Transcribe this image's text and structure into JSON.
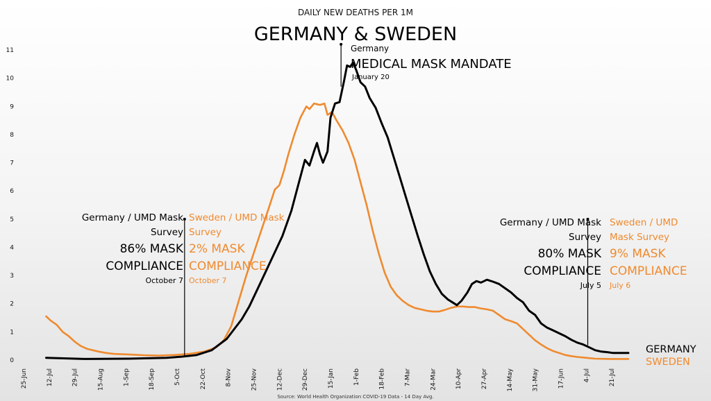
{
  "chart_data": {
    "type": "line",
    "subtitle": "DAILY NEW DEATHS PER 1M",
    "title": "GERMANY & SWEDEN",
    "source": "Source: World Health Organization COVID-19 Data - 14 Day Avg.",
    "ylim": [
      0,
      11
    ],
    "yticks": [
      0,
      1,
      2,
      3,
      4,
      5,
      6,
      7,
      8,
      9,
      10,
      11
    ],
    "x_domain": [
      0,
      408
    ],
    "xticks": [
      {
        "label": "25-Jun",
        "day": 0
      },
      {
        "label": "12-Jul",
        "day": 17
      },
      {
        "label": "29-Jul",
        "day": 34
      },
      {
        "label": "15-Aug",
        "day": 51
      },
      {
        "label": "1-Sep",
        "day": 68
      },
      {
        "label": "18-Sep",
        "day": 85
      },
      {
        "label": "5-Oct",
        "day": 102
      },
      {
        "label": "22-Oct",
        "day": 119
      },
      {
        "label": "8-Nov",
        "day": 136
      },
      {
        "label": "25-Nov",
        "day": 153
      },
      {
        "label": "12-Dec",
        "day": 170
      },
      {
        "label": "29-Dec",
        "day": 187
      },
      {
        "label": "15-Jan",
        "day": 204
      },
      {
        "label": "1-Feb",
        "day": 221
      },
      {
        "label": "18-Feb",
        "day": 238
      },
      {
        "label": "7-Mar",
        "day": 255
      },
      {
        "label": "24-Mar",
        "day": 272
      },
      {
        "label": "10-Apr",
        "day": 289
      },
      {
        "label": "27-Apr",
        "day": 306
      },
      {
        "label": "14-May",
        "day": 323
      },
      {
        "label": "31-May",
        "day": 340
      },
      {
        "label": "17-Jun",
        "day": 357
      },
      {
        "label": "4-Jul",
        "day": 374
      },
      {
        "label": "21-Jul",
        "day": 391
      }
    ],
    "series": [
      {
        "name": "GERMANY",
        "color": "#000000",
        "points": [
          [
            15,
            0.08
          ],
          [
            40,
            0.04
          ],
          [
            70,
            0.05
          ],
          [
            95,
            0.08
          ],
          [
            105,
            0.12
          ],
          [
            115,
            0.18
          ],
          [
            125,
            0.35
          ],
          [
            135,
            0.75
          ],
          [
            145,
            1.45
          ],
          [
            150,
            1.9
          ],
          [
            158,
            2.8
          ],
          [
            165,
            3.6
          ],
          [
            172,
            4.4
          ],
          [
            178,
            5.3
          ],
          [
            183,
            6.3
          ],
          [
            187,
            7.1
          ],
          [
            190,
            6.9
          ],
          [
            193,
            7.4
          ],
          [
            195,
            7.7
          ],
          [
            197,
            7.3
          ],
          [
            199,
            7.0
          ],
          [
            202,
            7.4
          ],
          [
            204,
            8.6
          ],
          [
            207,
            9.1
          ],
          [
            210,
            9.15
          ],
          [
            213,
            9.9
          ],
          [
            215,
            10.45
          ],
          [
            217,
            10.4
          ],
          [
            219,
            10.55
          ],
          [
            221,
            10.3
          ],
          [
            224,
            9.85
          ],
          [
            227,
            9.7
          ],
          [
            230,
            9.3
          ],
          [
            234,
            8.95
          ],
          [
            238,
            8.4
          ],
          [
            242,
            7.9
          ],
          [
            246,
            7.2
          ],
          [
            250,
            6.5
          ],
          [
            254,
            5.8
          ],
          [
            258,
            5.1
          ],
          [
            262,
            4.4
          ],
          [
            266,
            3.75
          ],
          [
            270,
            3.15
          ],
          [
            274,
            2.7
          ],
          [
            278,
            2.35
          ],
          [
            282,
            2.15
          ],
          [
            285,
            2.05
          ],
          [
            288,
            1.95
          ],
          [
            291,
            2.1
          ],
          [
            295,
            2.4
          ],
          [
            298,
            2.7
          ],
          [
            301,
            2.8
          ],
          [
            304,
            2.75
          ],
          [
            308,
            2.85
          ],
          [
            312,
            2.78
          ],
          [
            316,
            2.7
          ],
          [
            320,
            2.55
          ],
          [
            324,
            2.4
          ],
          [
            328,
            2.2
          ],
          [
            332,
            2.05
          ],
          [
            336,
            1.75
          ],
          [
            340,
            1.6
          ],
          [
            344,
            1.3
          ],
          [
            348,
            1.15
          ],
          [
            352,
            1.05
          ],
          [
            356,
            0.95
          ],
          [
            360,
            0.85
          ],
          [
            364,
            0.72
          ],
          [
            368,
            0.62
          ],
          [
            372,
            0.55
          ],
          [
            376,
            0.45
          ],
          [
            380,
            0.35
          ],
          [
            384,
            0.3
          ],
          [
            388,
            0.28
          ],
          [
            392,
            0.25
          ],
          [
            396,
            0.25
          ],
          [
            402,
            0.25
          ]
        ]
      },
      {
        "name": "SWEDEN",
        "color": "#ef8a2f",
        "points": [
          [
            15,
            1.55
          ],
          [
            18,
            1.4
          ],
          [
            22,
            1.25
          ],
          [
            26,
            1.0
          ],
          [
            30,
            0.85
          ],
          [
            34,
            0.65
          ],
          [
            38,
            0.5
          ],
          [
            42,
            0.4
          ],
          [
            46,
            0.35
          ],
          [
            50,
            0.3
          ],
          [
            55,
            0.25
          ],
          [
            60,
            0.22
          ],
          [
            70,
            0.2
          ],
          [
            80,
            0.17
          ],
          [
            90,
            0.16
          ],
          [
            100,
            0.18
          ],
          [
            110,
            0.22
          ],
          [
            120,
            0.3
          ],
          [
            128,
            0.45
          ],
          [
            133,
            0.7
          ],
          [
            138,
            1.2
          ],
          [
            143,
            2.1
          ],
          [
            148,
            3.0
          ],
          [
            153,
            3.8
          ],
          [
            158,
            4.6
          ],
          [
            163,
            5.4
          ],
          [
            167,
            6.05
          ],
          [
            170,
            6.2
          ],
          [
            173,
            6.7
          ],
          [
            176,
            7.3
          ],
          [
            180,
            8.0
          ],
          [
            184,
            8.6
          ],
          [
            188,
            9.0
          ],
          [
            190,
            8.9
          ],
          [
            193,
            9.1
          ],
          [
            197,
            9.05
          ],
          [
            200,
            9.1
          ],
          [
            202,
            8.7
          ],
          [
            205,
            8.8
          ],
          [
            208,
            8.5
          ],
          [
            212,
            8.15
          ],
          [
            216,
            7.7
          ],
          [
            220,
            7.1
          ],
          [
            224,
            6.3
          ],
          [
            228,
            5.5
          ],
          [
            232,
            4.6
          ],
          [
            236,
            3.8
          ],
          [
            240,
            3.1
          ],
          [
            244,
            2.6
          ],
          [
            248,
            2.3
          ],
          [
            252,
            2.1
          ],
          [
            256,
            1.95
          ],
          [
            260,
            1.85
          ],
          [
            264,
            1.8
          ],
          [
            268,
            1.75
          ],
          [
            272,
            1.72
          ],
          [
            276,
            1.72
          ],
          [
            280,
            1.78
          ],
          [
            284,
            1.85
          ],
          [
            288,
            1.9
          ],
          [
            292,
            1.9
          ],
          [
            296,
            1.88
          ],
          [
            300,
            1.88
          ],
          [
            304,
            1.83
          ],
          [
            308,
            1.8
          ],
          [
            312,
            1.75
          ],
          [
            316,
            1.6
          ],
          [
            320,
            1.45
          ],
          [
            324,
            1.38
          ],
          [
            328,
            1.3
          ],
          [
            332,
            1.1
          ],
          [
            336,
            0.9
          ],
          [
            340,
            0.7
          ],
          [
            344,
            0.55
          ],
          [
            348,
            0.42
          ],
          [
            352,
            0.32
          ],
          [
            356,
            0.25
          ],
          [
            360,
            0.18
          ],
          [
            364,
            0.14
          ],
          [
            368,
            0.11
          ],
          [
            372,
            0.09
          ],
          [
            376,
            0.07
          ],
          [
            380,
            0.05
          ],
          [
            390,
            0.04
          ],
          [
            402,
            0.04
          ]
        ]
      }
    ],
    "annotations": {
      "german_mandate": {
        "day": 211,
        "value": 11.2,
        "country": "Germany",
        "headline": "MEDICAL MASK MANDATE",
        "date": "January 20"
      },
      "october": {
        "day": 107,
        "top_value": 5.0,
        "germany": {
          "survey_line1": "Germany / UMD Mask",
          "survey_line2": "Survey",
          "pct": "86% MASK",
          "word": "COMPLIANCE",
          "date": "October 7"
        },
        "sweden": {
          "survey_line1": "Sweden / UMD Mask",
          "survey_line2": "Survey",
          "pct": "2% MASK",
          "word": "COMPLIANCE",
          "date": "October 7"
        }
      },
      "july": {
        "day": 375,
        "top_value": 5.0,
        "germany": {
          "survey_line1": "Germany / UMD Mask",
          "survey_line2": "Survey",
          "pct": "80% MASK",
          "word": "COMPLIANCE",
          "date": "July 5"
        },
        "sweden": {
          "survey_line1": "Sweden / UMD",
          "survey_line2": "Mask Survey",
          "pct": "9% MASK",
          "word": "COMPLIANCE",
          "date": "July 6"
        }
      }
    }
  }
}
